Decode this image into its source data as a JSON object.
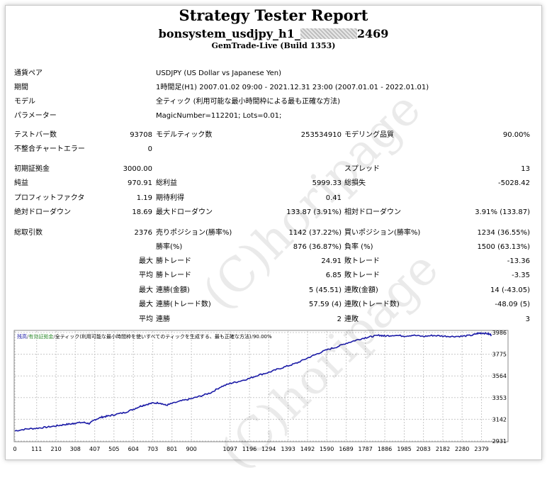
{
  "header": {
    "title": "Strategy Tester Report",
    "expert_prefix": "bonsystem_usdjpy_h1_",
    "expert_suffix": "2469",
    "server": "GemTrade-Live (Build 1353)"
  },
  "settings": [
    {
      "label": "通貨ペア",
      "value": "USDJPY (US Dollar vs Japanese Yen)"
    },
    {
      "label": "期間",
      "value": "1時間足(H1) 2007.01.02 09:00 - 2021.12.31 23:00 (2007.01.01 - 2022.01.01)"
    },
    {
      "label": "モデル",
      "value": "全ティック (利用可能な最小時間枠による最も正確な方法)"
    },
    {
      "label": "パラメーター",
      "value": "MagicNumber=112201; Lots=0.01;"
    }
  ],
  "stats": {
    "bars_label": "テストバー数",
    "bars": "93708",
    "ticks_label": "モデルティック数",
    "ticks": "253534910",
    "quality_label": "モデリング品質",
    "quality": "90.00%",
    "mismatch_label": "不整合チャートエラー",
    "mismatch": "0",
    "deposit_label": "初期証拠金",
    "deposit": "3000.00",
    "spread_label": "スプレッド",
    "spread": "13",
    "net_label": "純益",
    "net": "970.91",
    "gross_profit_label": "総利益",
    "gross_profit": "5999.33",
    "gross_loss_label": "総損失",
    "gross_loss": "-5028.42",
    "pf_label": "プロフィットファクタ",
    "pf": "1.19",
    "payoff_label": "期待利得",
    "payoff": "0.41",
    "abs_dd_label": "絶対ドローダウン",
    "abs_dd": "18.69",
    "max_dd_label": "最大ドローダウン",
    "max_dd": "133.87 (3.91%)",
    "rel_dd_label": "相対ドローダウン",
    "rel_dd": "3.91% (133.87)",
    "total_label": "総取引数",
    "total": "2376",
    "short_label": "売りポジション(勝率%)",
    "short": "1142 (37.22%)",
    "long_label": "買いポジション(勝率%)",
    "long": "1234 (36.55%)",
    "win_pct_label": "勝率(%)",
    "win_pct": "876 (36.87%)",
    "loss_pct_label": "負率 (%)",
    "loss_pct": "1500 (63.13%)",
    "p_max": "最大",
    "largest_win_label": "勝トレード",
    "largest_win": "24.91",
    "largest_loss_label": "敗トレード",
    "largest_loss": "-13.36",
    "p_avg": "平均",
    "avg_win_label": "勝トレード",
    "avg_win": "6.85",
    "avg_loss_label": "敗トレード",
    "avg_loss": "-3.35",
    "max_consec_win_label": "連勝(金額)",
    "max_consec_win": "5 (45.51)",
    "max_consec_loss_label": "連敗(金額)",
    "max_consec_loss": "14 (-43.05)",
    "max_consec_win_cnt_label": "連勝(トレード数)",
    "max_consec_win_cnt": "57.59 (4)",
    "max_consec_loss_cnt_label": "連敗(トレード数)",
    "max_consec_loss_cnt": "-48.09 (5)",
    "avg_consec_win_label": "連勝",
    "avg_consec_win": "2",
    "avg_consec_loss_label": "連敗",
    "avg_consec_loss": "3"
  },
  "chart_legend": {
    "balance": "残高",
    "equity": "有効証拠金",
    "model": "全ティック(利用可能な最小時間枠を使いすべてのティックを生成する、最も正確な方法)",
    "quality": "90.00%",
    "sep": "/"
  },
  "watermark": "(C)horipage",
  "colors": {
    "balance": "#1a1aa6",
    "equity": "#2e8b2e",
    "grid": "#c8c8c8"
  },
  "chart_data": {
    "type": "line",
    "x_ticks": [
      0,
      111,
      210,
      308,
      407,
      505,
      604,
      703,
      801,
      900,
      1097,
      1196,
      1294,
      1393,
      1492,
      1590,
      1689,
      1787,
      1886,
      1985,
      2083,
      2182,
      2280,
      2379
    ],
    "y_ticks": [
      2931,
      3142,
      3353,
      3564,
      3775,
      3986
    ],
    "ylim": [
      2931,
      4000
    ],
    "xlim": [
      0,
      2460
    ],
    "series": [
      {
        "name": "残高",
        "points": [
          [
            0,
            3030
          ],
          [
            60,
            3048
          ],
          [
            111,
            3055
          ],
          [
            160,
            3065
          ],
          [
            210,
            3078
          ],
          [
            250,
            3090
          ],
          [
            290,
            3098
          ],
          [
            308,
            3105
          ],
          [
            350,
            3112
          ],
          [
            380,
            3100
          ],
          [
            407,
            3138
          ],
          [
            440,
            3162
          ],
          [
            470,
            3172
          ],
          [
            505,
            3186
          ],
          [
            560,
            3208
          ],
          [
            604,
            3240
          ],
          [
            640,
            3270
          ],
          [
            670,
            3286
          ],
          [
            703,
            3300
          ],
          [
            740,
            3302
          ],
          [
            770,
            3278
          ],
          [
            801,
            3296
          ],
          [
            850,
            3322
          ],
          [
            900,
            3343
          ],
          [
            950,
            3370
          ],
          [
            1000,
            3402
          ],
          [
            1050,
            3458
          ],
          [
            1097,
            3491
          ],
          [
            1140,
            3510
          ],
          [
            1196,
            3540
          ],
          [
            1240,
            3572
          ],
          [
            1294,
            3598
          ],
          [
            1340,
            3630
          ],
          [
            1393,
            3662
          ],
          [
            1440,
            3692
          ],
          [
            1492,
            3738
          ],
          [
            1540,
            3778
          ],
          [
            1590,
            3818
          ],
          [
            1640,
            3845
          ],
          [
            1689,
            3882
          ],
          [
            1740,
            3912
          ],
          [
            1787,
            3936
          ],
          [
            1820,
            3948
          ],
          [
            1860,
            3960
          ],
          [
            1886,
            3952
          ],
          [
            1930,
            3960
          ],
          [
            1985,
            3952
          ],
          [
            2030,
            3960
          ],
          [
            2083,
            3948
          ],
          [
            2130,
            3958
          ],
          [
            2182,
            3952
          ],
          [
            2230,
            3948
          ],
          [
            2280,
            3950
          ],
          [
            2330,
            3960
          ],
          [
            2360,
            3978
          ],
          [
            2379,
            3982
          ],
          [
            2410,
            3975
          ],
          [
            2430,
            3962
          ]
        ]
      }
    ]
  }
}
